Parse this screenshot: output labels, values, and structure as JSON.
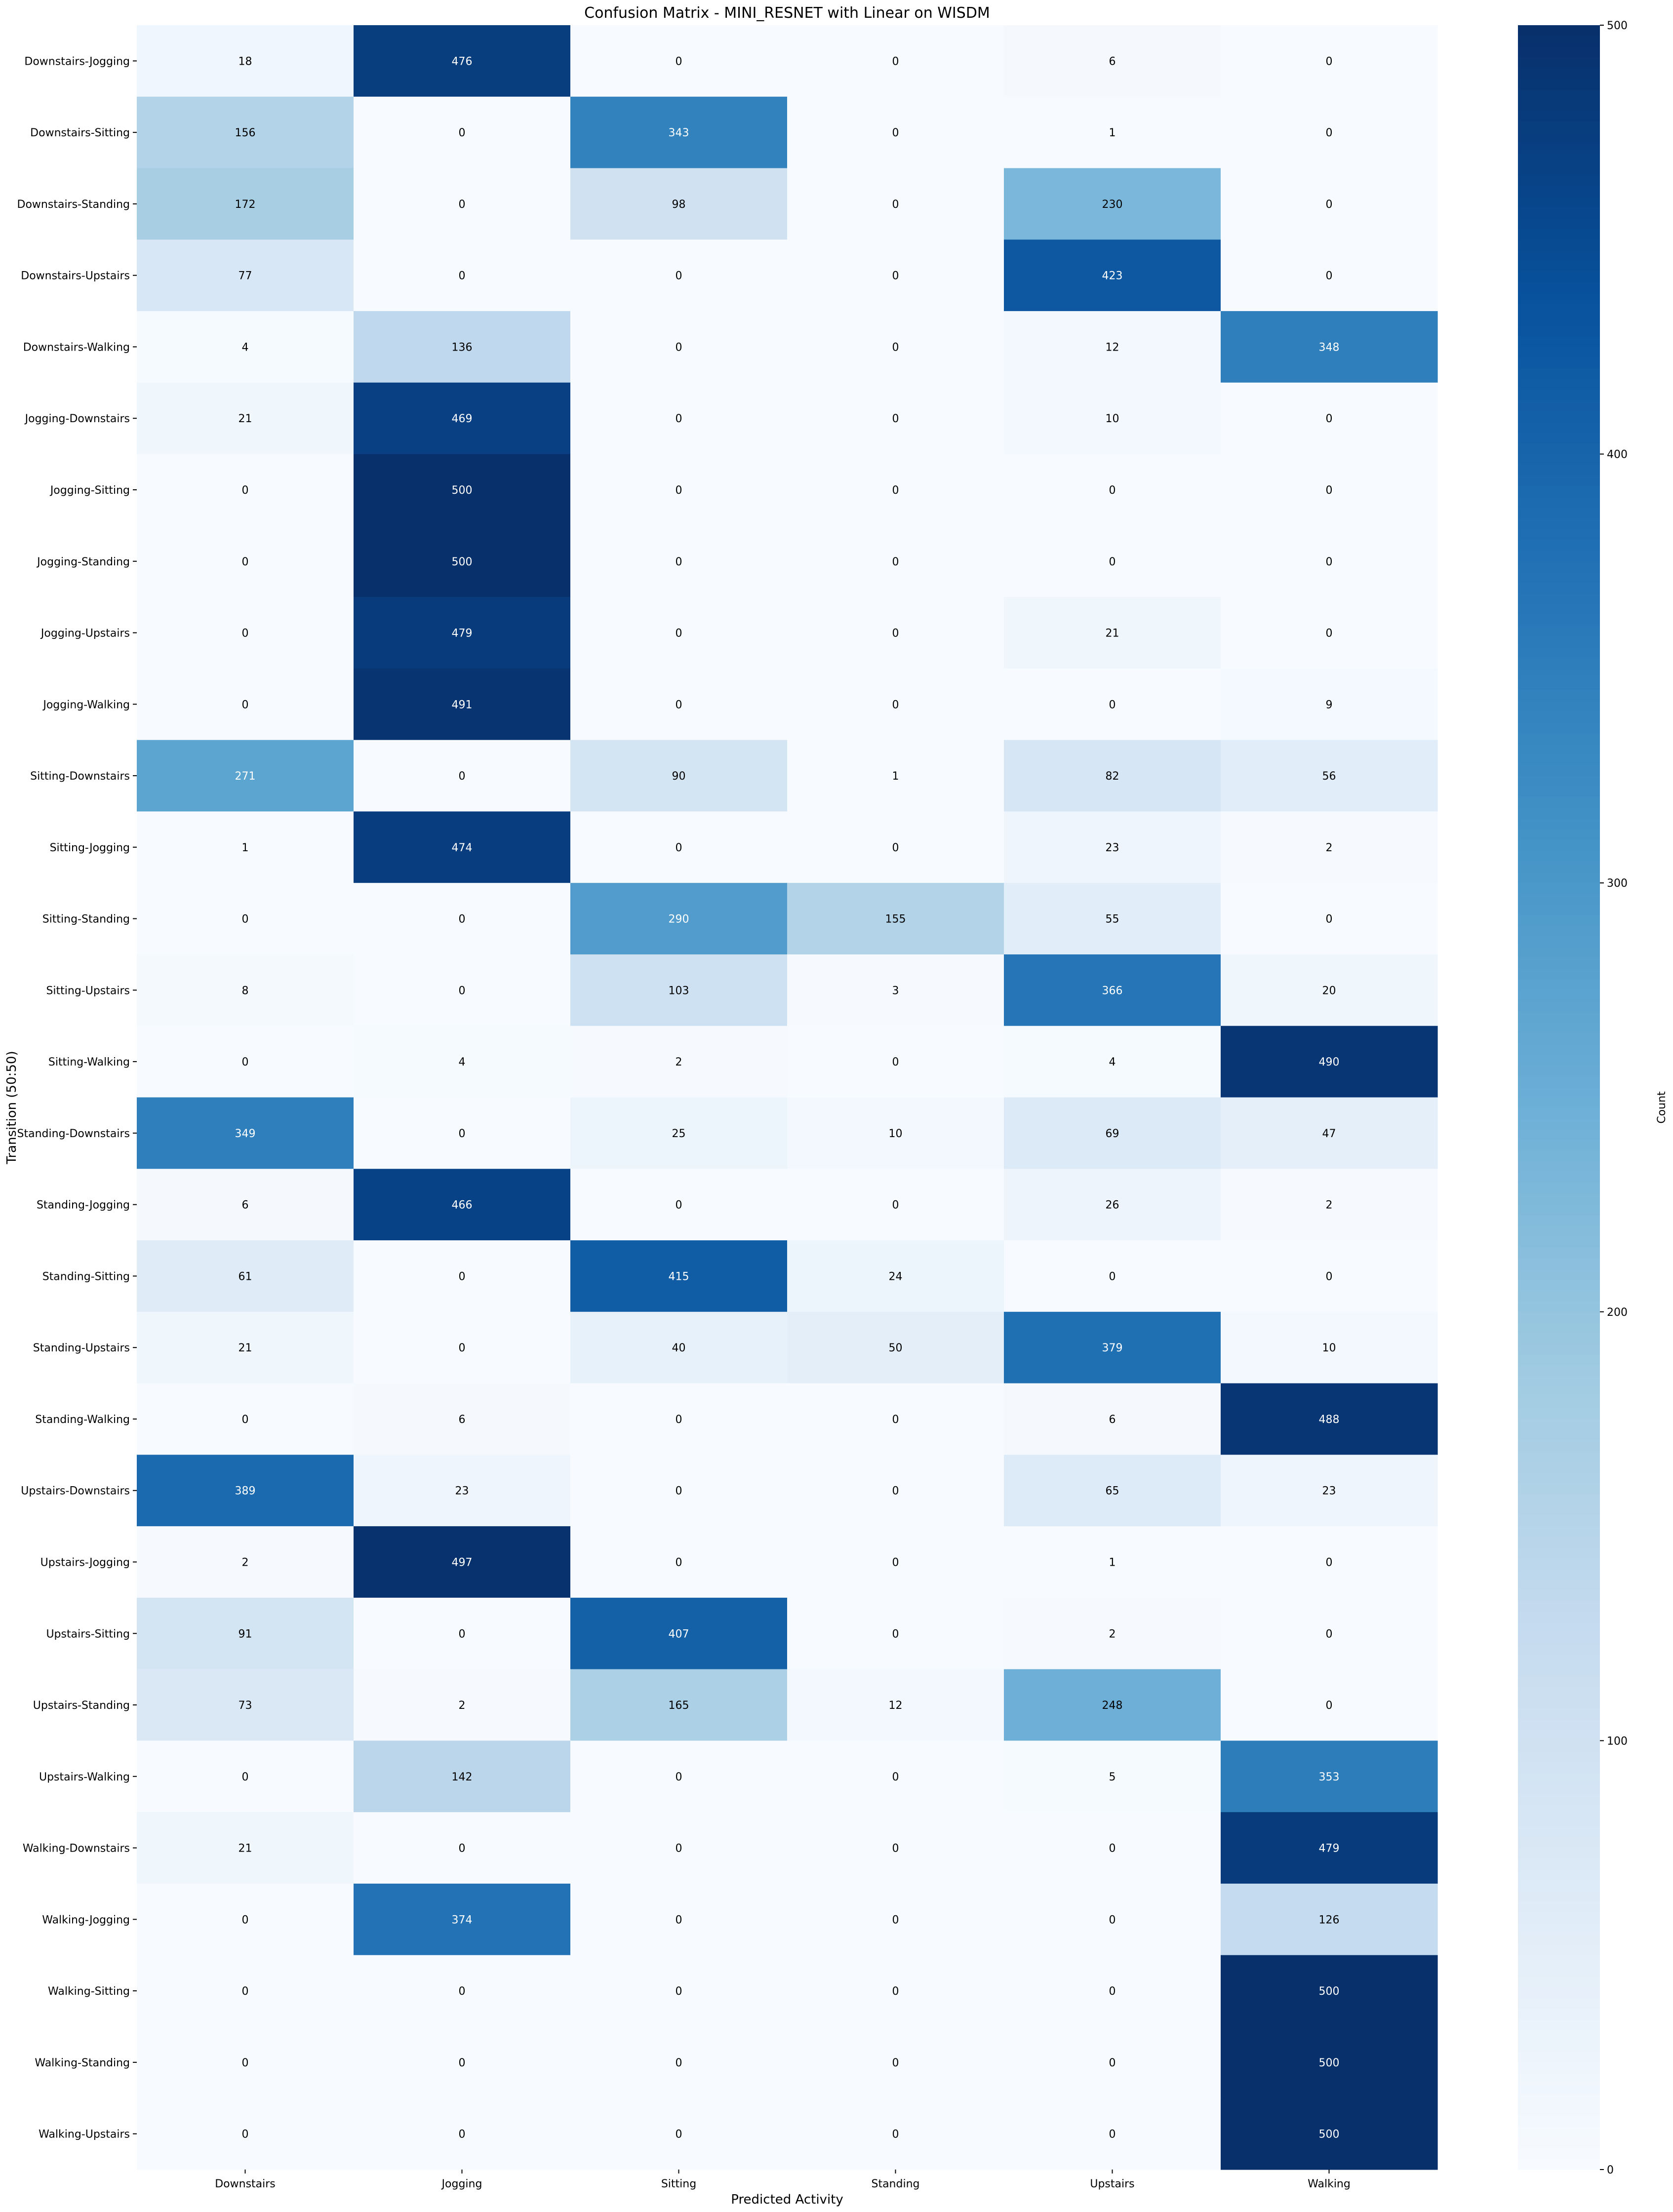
{
  "chart_data": {
    "type": "heatmap",
    "title": "Confusion Matrix - MINI_RESNET with Linear on WISDM",
    "xlabel": "Predicted Activity",
    "ylabel": "Transition (50:50)",
    "x_categories": [
      "Downstairs",
      "Jogging",
      "Sitting",
      "Standing",
      "Upstairs",
      "Walking"
    ],
    "y_categories": [
      "Downstairs-Jogging",
      "Downstairs-Sitting",
      "Downstairs-Standing",
      "Downstairs-Upstairs",
      "Downstairs-Walking",
      "Jogging-Downstairs",
      "Jogging-Sitting",
      "Jogging-Standing",
      "Jogging-Upstairs",
      "Jogging-Walking",
      "Sitting-Downstairs",
      "Sitting-Jogging",
      "Sitting-Standing",
      "Sitting-Upstairs",
      "Sitting-Walking",
      "Standing-Downstairs",
      "Standing-Jogging",
      "Standing-Sitting",
      "Standing-Upstairs",
      "Standing-Walking",
      "Upstairs-Downstairs",
      "Upstairs-Jogging",
      "Upstairs-Sitting",
      "Upstairs-Standing",
      "Upstairs-Walking",
      "Walking-Downstairs",
      "Walking-Jogging",
      "Walking-Sitting",
      "Walking-Standing",
      "Walking-Upstairs"
    ],
    "values": [
      [
        18,
        476,
        0,
        0,
        6,
        0
      ],
      [
        156,
        0,
        343,
        0,
        1,
        0
      ],
      [
        172,
        0,
        98,
        0,
        230,
        0
      ],
      [
        77,
        0,
        0,
        0,
        423,
        0
      ],
      [
        4,
        136,
        0,
        0,
        12,
        348
      ],
      [
        21,
        469,
        0,
        0,
        10,
        0
      ],
      [
        0,
        500,
        0,
        0,
        0,
        0
      ],
      [
        0,
        500,
        0,
        0,
        0,
        0
      ],
      [
        0,
        479,
        0,
        0,
        21,
        0
      ],
      [
        0,
        491,
        0,
        0,
        0,
        9
      ],
      [
        271,
        0,
        90,
        1,
        82,
        56
      ],
      [
        1,
        474,
        0,
        0,
        23,
        2
      ],
      [
        0,
        0,
        290,
        155,
        55,
        0
      ],
      [
        8,
        0,
        103,
        3,
        366,
        20
      ],
      [
        0,
        4,
        2,
        0,
        4,
        490
      ],
      [
        349,
        0,
        25,
        10,
        69,
        47
      ],
      [
        6,
        466,
        0,
        0,
        26,
        2
      ],
      [
        61,
        0,
        415,
        24,
        0,
        0
      ],
      [
        21,
        0,
        40,
        50,
        379,
        10
      ],
      [
        0,
        6,
        0,
        0,
        6,
        488
      ],
      [
        389,
        23,
        0,
        0,
        65,
        23
      ],
      [
        2,
        497,
        0,
        0,
        1,
        0
      ],
      [
        91,
        0,
        407,
        0,
        2,
        0
      ],
      [
        73,
        2,
        165,
        12,
        248,
        0
      ],
      [
        0,
        142,
        0,
        0,
        5,
        353
      ],
      [
        21,
        0,
        0,
        0,
        0,
        479
      ],
      [
        0,
        374,
        0,
        0,
        0,
        126
      ],
      [
        0,
        0,
        0,
        0,
        0,
        500
      ],
      [
        0,
        0,
        0,
        0,
        0,
        500
      ],
      [
        0,
        0,
        0,
        0,
        0,
        500
      ]
    ],
    "colorbar": {
      "label": "Count",
      "range": [
        0,
        500
      ],
      "ticks": [
        0,
        100,
        200,
        300,
        400,
        500
      ],
      "colormap": "Blues"
    }
  }
}
